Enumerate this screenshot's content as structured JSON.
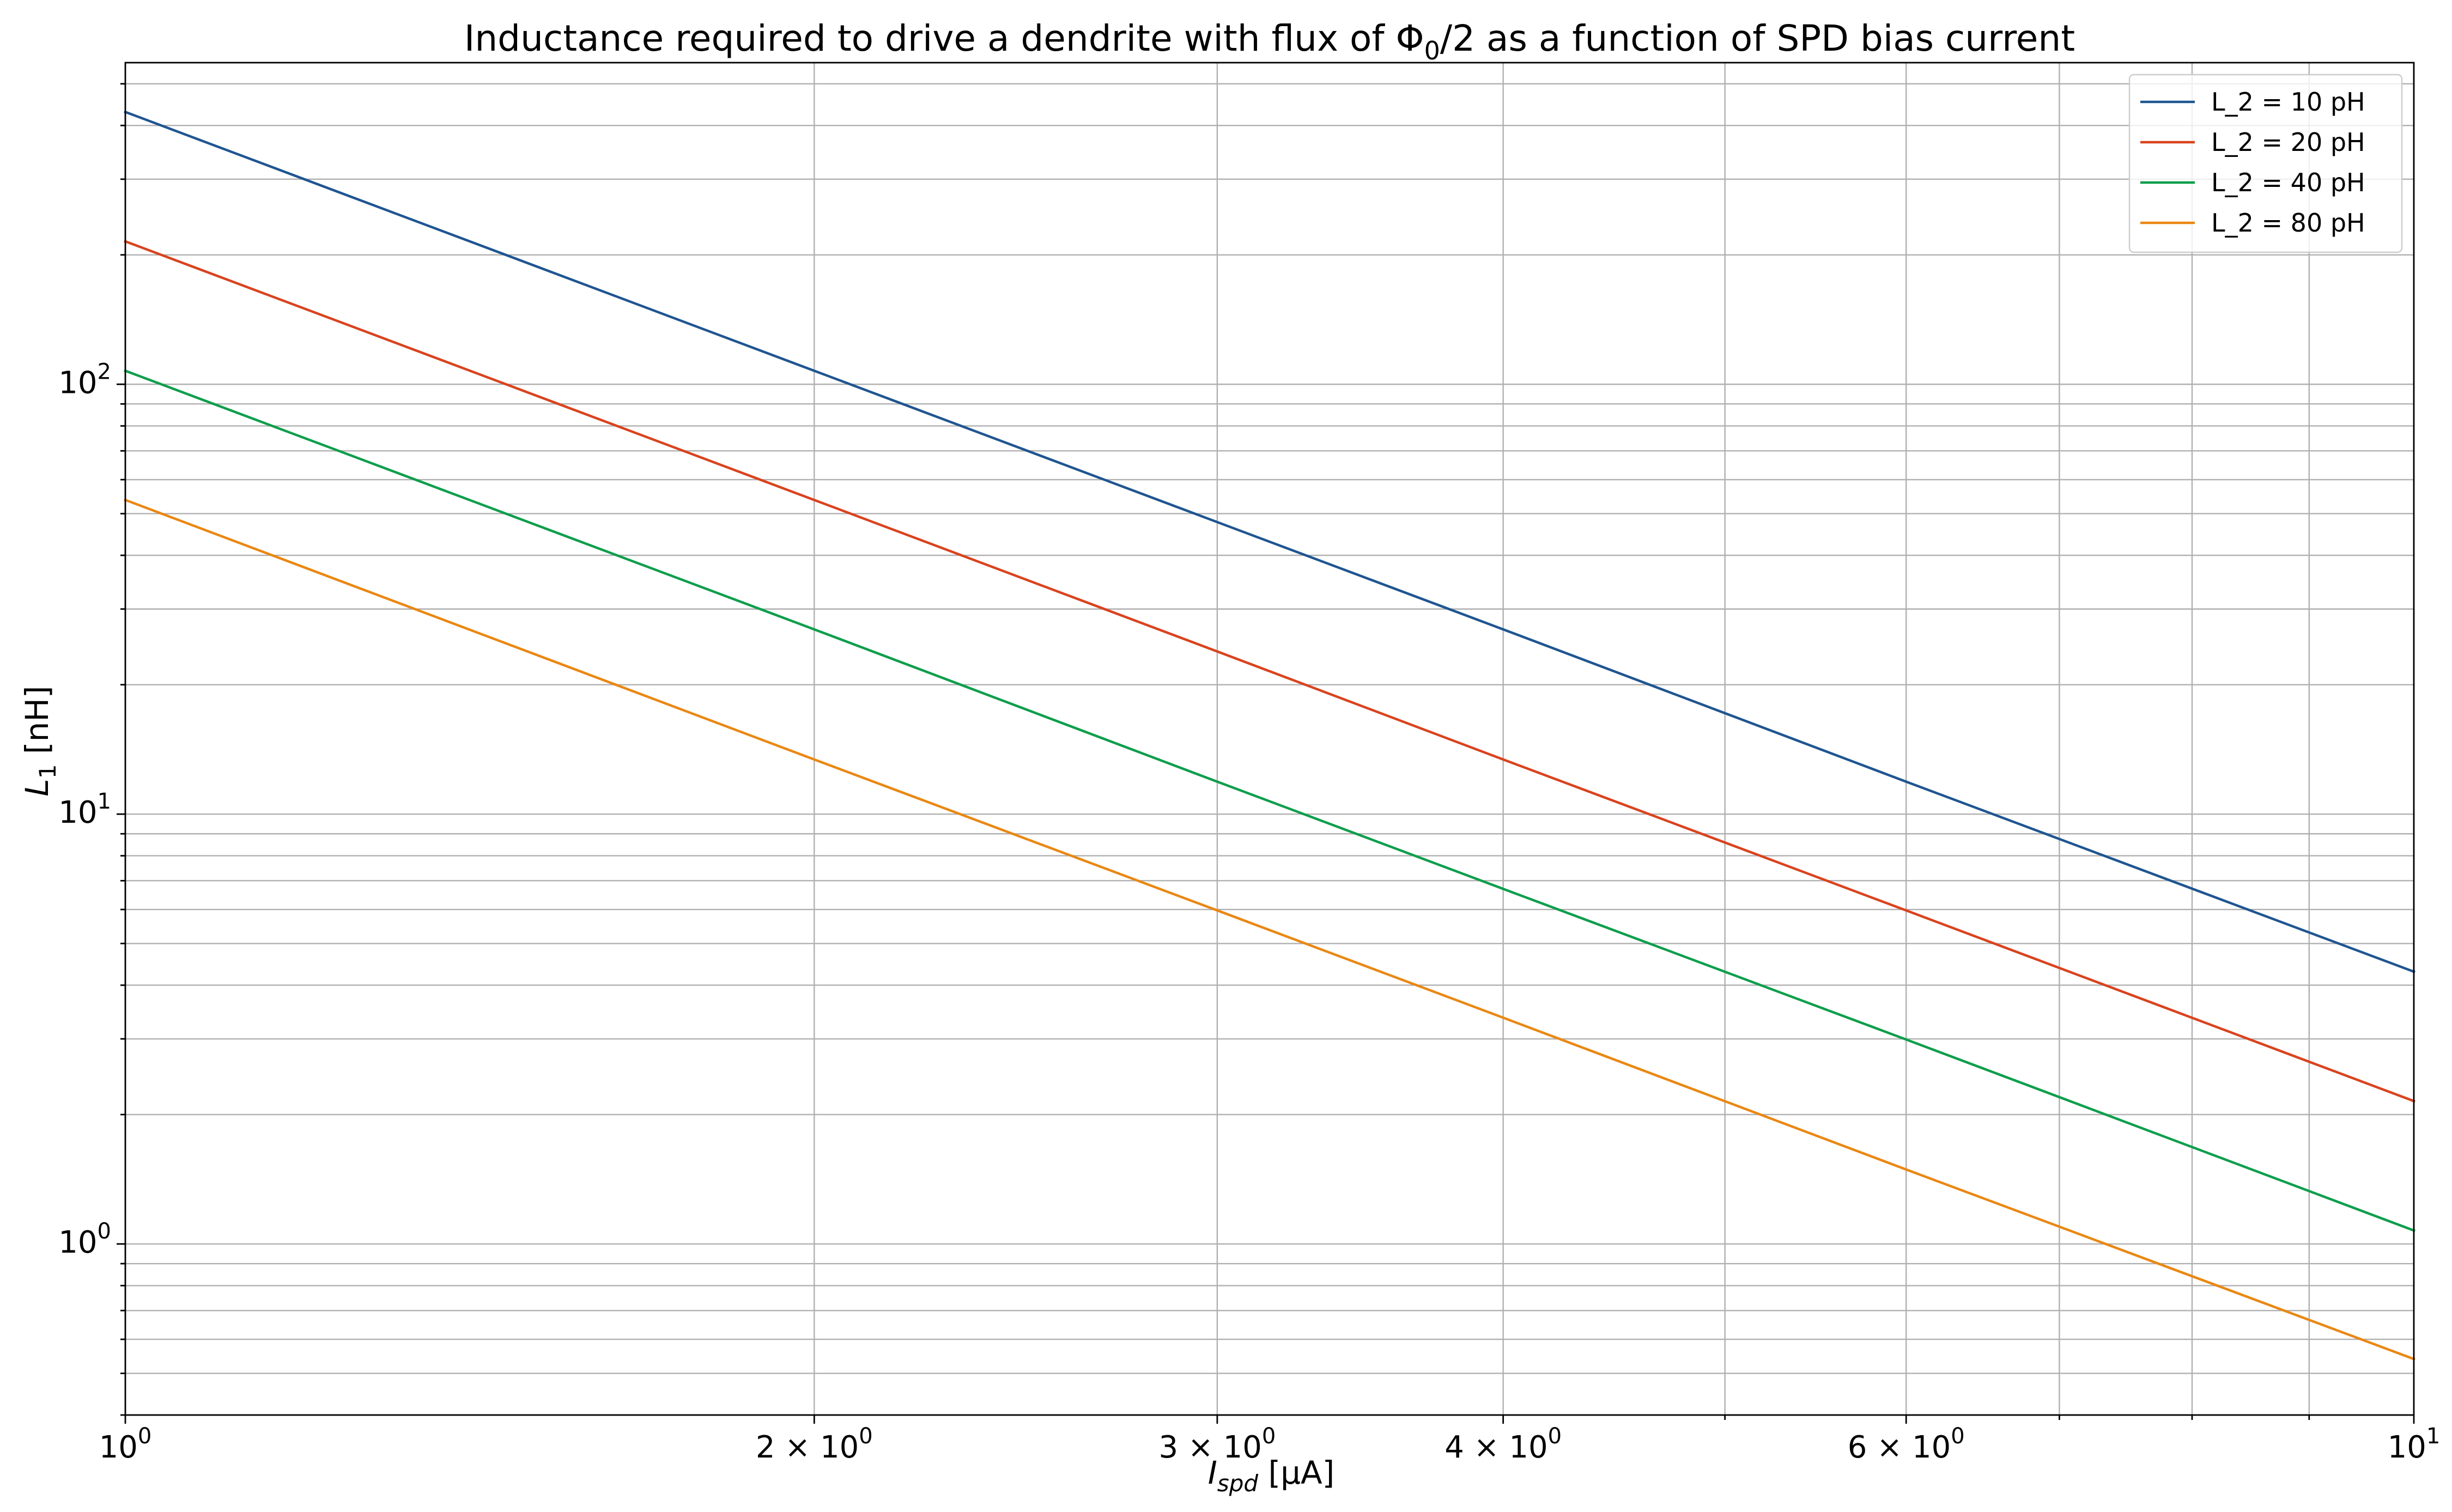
{
  "chart_data": {
    "type": "line",
    "title": {
      "prefix": "Inductance required to drive a dendrite with flux of Φ",
      "subscript": "0",
      "suffix": "/2 as a function of SPD bias current"
    },
    "xlabel": {
      "main": "I",
      "subscript": "spd",
      "unit": " [μA]"
    },
    "ylabel": {
      "main": "L",
      "subscript": "1",
      "unit": " [nH]"
    },
    "xscale": "log",
    "yscale": "log",
    "xlim": [
      1,
      10
    ],
    "ylim": [
      0.4,
      560
    ],
    "grid": true,
    "legend_position": "top-right",
    "x_ticks": [
      {
        "value": 1,
        "mantissa": "",
        "base": "10",
        "exp": "0"
      },
      {
        "value": 2,
        "mantissa": "2 × ",
        "base": "10",
        "exp": "0"
      },
      {
        "value": 3,
        "mantissa": "3 × ",
        "base": "10",
        "exp": "0"
      },
      {
        "value": 4,
        "mantissa": "4 × ",
        "base": "10",
        "exp": "0"
      },
      {
        "value": 6,
        "mantissa": "6 × ",
        "base": "10",
        "exp": "0"
      },
      {
        "value": 10,
        "mantissa": "",
        "base": "10",
        "exp": "1"
      }
    ],
    "y_ticks": [
      {
        "value": 1,
        "base": "10",
        "exp": "0"
      },
      {
        "value": 10,
        "base": "10",
        "exp": "1"
      },
      {
        "value": 100,
        "base": "10",
        "exp": "2"
      }
    ],
    "series": [
      {
        "name": "L_2 = 10 pH",
        "color": "#1f5591",
        "x": [
          1,
          2,
          3,
          4,
          6,
          10
        ],
        "y": [
          430,
          107.5,
          47.8,
          26.9,
          11.9,
          4.3
        ]
      },
      {
        "name": "L_2 = 20 pH",
        "color": "#d9431e",
        "x": [
          1,
          2,
          3,
          4,
          6,
          10
        ],
        "y": [
          215,
          53.8,
          23.9,
          13.4,
          5.97,
          2.15
        ]
      },
      {
        "name": "L_2 = 40 pH",
        "color": "#0e9e4c",
        "x": [
          1,
          2,
          3,
          4,
          6,
          10
        ],
        "y": [
          107.5,
          26.9,
          11.9,
          6.7,
          2.99,
          1.075
        ]
      },
      {
        "name": "L_2 = 80 pH",
        "color": "#ea8712",
        "x": [
          1,
          2,
          3,
          4,
          6,
          10
        ],
        "y": [
          53.8,
          13.4,
          5.97,
          3.36,
          1.49,
          0.54
        ]
      }
    ]
  }
}
